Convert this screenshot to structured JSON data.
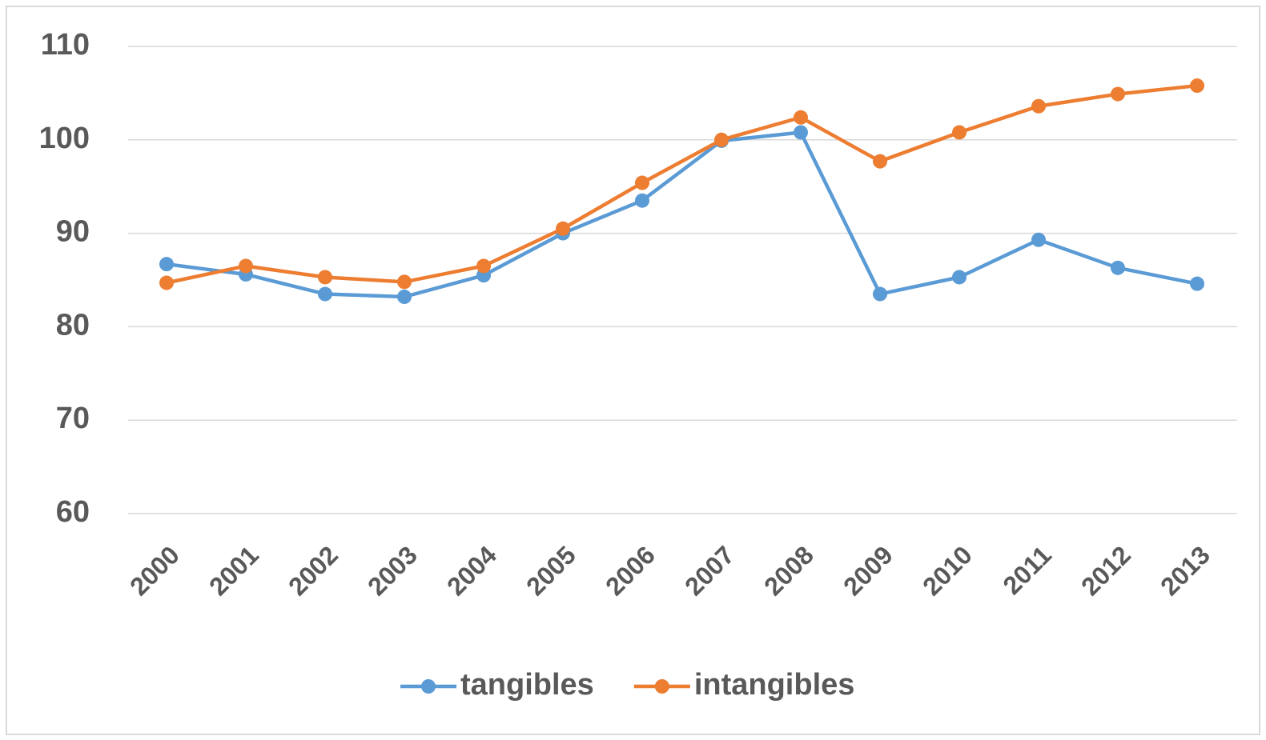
{
  "chart_data": {
    "type": "line",
    "categories": [
      "2000",
      "2001",
      "2002",
      "2003",
      "2004",
      "2005",
      "2006",
      "2007",
      "2008",
      "2009",
      "2010",
      "2011",
      "2012",
      "2013"
    ],
    "series": [
      {
        "name": "tangibles",
        "color": "#5b9bd5",
        "values": [
          86.7,
          85.6,
          83.5,
          83.2,
          85.5,
          90.0,
          93.5,
          99.9,
          100.8,
          83.5,
          85.3,
          89.3,
          86.3,
          84.6
        ]
      },
      {
        "name": "intangibles",
        "color": "#ed7d31",
        "values": [
          84.7,
          86.5,
          85.3,
          84.8,
          86.5,
          90.5,
          95.4,
          100.0,
          102.4,
          97.7,
          100.8,
          103.6,
          104.9,
          105.8
        ]
      }
    ],
    "ylim": [
      60,
      110
    ],
    "yticks": [
      60,
      70,
      80,
      90,
      100,
      110
    ],
    "grid": true,
    "legend": "bottom"
  }
}
